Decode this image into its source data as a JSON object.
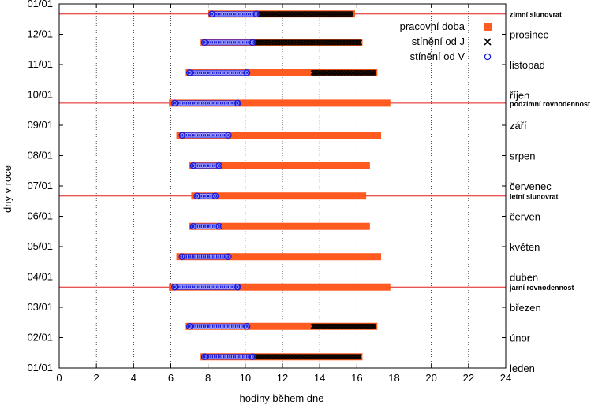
{
  "chart_data": {
    "type": "bar",
    "orientation": "horizontal",
    "xlabel": "hodiny během dne",
    "ylabel": "dny v roce",
    "xlim": [
      0,
      24
    ],
    "x_ticks": [
      "0",
      "2",
      "4",
      "6",
      "8",
      "10",
      "12",
      "14",
      "16",
      "18",
      "20",
      "22",
      "24"
    ],
    "y_ticks": [
      "01/01",
      "02/01",
      "03/01",
      "04/01",
      "05/01",
      "06/01",
      "07/01",
      "08/01",
      "09/01",
      "10/01",
      "11/01",
      "12/01",
      "01/01"
    ],
    "ylim_months": [
      0,
      12
    ],
    "grid": "vertical dotted at each x tick",
    "legend_position": "top-right",
    "legend": [
      {
        "label": "pracovní doba",
        "color": "#ff5a1f",
        "marker": "square"
      },
      {
        "label": "stínění od J",
        "color": "#000000",
        "marker": "x"
      },
      {
        "label": "stínění od V",
        "color": "#1a1adb",
        "marker": "circle"
      }
    ],
    "month_labels": [
      {
        "label": "leden",
        "y": 0.0
      },
      {
        "label": "únor",
        "y": 1.0
      },
      {
        "label": "březen",
        "y": 2.0
      },
      {
        "label": "duben",
        "y": 3.0
      },
      {
        "label": "květen",
        "y": 4.0
      },
      {
        "label": "červen",
        "y": 5.0
      },
      {
        "label": "červenec",
        "y": 6.0
      },
      {
        "label": "srpen",
        "y": 7.0
      },
      {
        "label": "září",
        "y": 8.0
      },
      {
        "label": "říjen",
        "y": 9.0
      },
      {
        "label": "listopad",
        "y": 10.0
      },
      {
        "label": "prosinec",
        "y": 11.0
      }
    ],
    "season_lines": [
      {
        "label": "jarní rovnodennost",
        "y": 2.67
      },
      {
        "label": "letní slunovrat",
        "y": 5.67
      },
      {
        "label": "podzimní rovnodennost",
        "y": 8.73
      },
      {
        "label": "zimní slunovrat",
        "y": 11.67
      }
    ],
    "series": [
      {
        "name": "pracovní doba",
        "rows": [
          {
            "day": 0.37,
            "start": 7.6,
            "end": 16.3
          },
          {
            "day": 1.37,
            "start": 6.8,
            "end": 17.1
          },
          {
            "day": 2.67,
            "start": 5.9,
            "end": 17.8
          },
          {
            "day": 3.67,
            "start": 6.3,
            "end": 17.3
          },
          {
            "day": 4.67,
            "start": 7.0,
            "end": 16.7
          },
          {
            "day": 5.67,
            "start": 7.1,
            "end": 16.5
          },
          {
            "day": 6.67,
            "start": 7.0,
            "end": 16.7
          },
          {
            "day": 7.67,
            "start": 6.3,
            "end": 17.3
          },
          {
            "day": 8.73,
            "start": 5.9,
            "end": 17.8
          },
          {
            "day": 9.73,
            "start": 6.8,
            "end": 17.1
          },
          {
            "day": 10.73,
            "start": 7.6,
            "end": 16.3
          },
          {
            "day": 11.67,
            "start": 8.0,
            "end": 15.9
          }
        ]
      },
      {
        "name": "stínění od J",
        "rows": [
          {
            "day": 0.37,
            "start": 10.5,
            "end": 16.2
          },
          {
            "day": 1.37,
            "start": 13.6,
            "end": 17.0
          },
          {
            "day": 9.73,
            "start": 13.6,
            "end": 17.0
          },
          {
            "day": 10.73,
            "start": 10.5,
            "end": 16.2
          },
          {
            "day": 11.67,
            "start": 10.7,
            "end": 15.8
          }
        ]
      },
      {
        "name": "stínění od V",
        "rows": [
          {
            "day": 0.37,
            "start": 7.7,
            "end": 10.5
          },
          {
            "day": 1.37,
            "start": 6.9,
            "end": 10.2
          },
          {
            "day": 2.67,
            "start": 6.1,
            "end": 9.7
          },
          {
            "day": 3.67,
            "start": 6.5,
            "end": 9.2
          },
          {
            "day": 4.67,
            "start": 7.1,
            "end": 8.7
          },
          {
            "day": 5.67,
            "start": 7.3,
            "end": 8.5
          },
          {
            "day": 6.67,
            "start": 7.1,
            "end": 8.7
          },
          {
            "day": 7.67,
            "start": 6.5,
            "end": 9.2
          },
          {
            "day": 8.73,
            "start": 6.1,
            "end": 9.7
          },
          {
            "day": 9.73,
            "start": 6.9,
            "end": 10.2
          },
          {
            "day": 10.73,
            "start": 7.7,
            "end": 10.5
          },
          {
            "day": 11.67,
            "start": 8.1,
            "end": 10.7
          }
        ]
      }
    ]
  }
}
